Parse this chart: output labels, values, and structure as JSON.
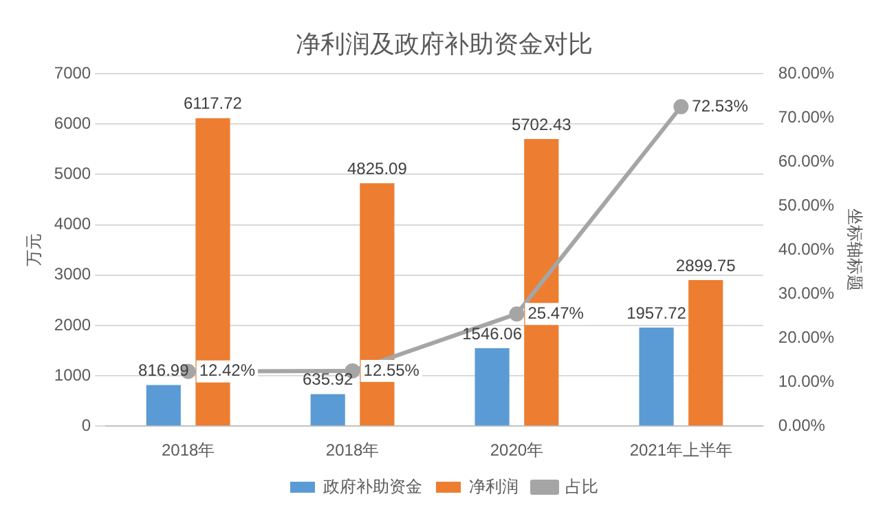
{
  "chart_data": {
    "type": "bar",
    "title": "净利润及政府补助资金对比",
    "categories": [
      "2018年",
      "2018年",
      "2020年",
      "2021年上半年"
    ],
    "series": [
      {
        "name": "政府补助资金",
        "color": "#5b9bd5",
        "values": [
          816.99,
          635.92,
          1546.06,
          1957.72
        ],
        "value_labels": [
          "816.99",
          "635.92",
          "1546.06",
          "1957.72"
        ]
      },
      {
        "name": "净利润",
        "color": "#ed7d31",
        "values": [
          6117.72,
          4825.09,
          5702.43,
          2899.75
        ],
        "value_labels": [
          "6117.72",
          "4825.09",
          "5702.43",
          "2899.75"
        ]
      },
      {
        "name": "占比",
        "type": "line",
        "axis": "y2",
        "color": "#a5a5a5",
        "marker": "circle",
        "values": [
          12.42,
          12.55,
          25.47,
          72.53
        ],
        "value_labels": [
          "12.42%",
          "12.55%",
          "25.47%",
          "72.53%"
        ]
      }
    ],
    "ylabel": "万元",
    "y2label": "坐标轴标题",
    "ylim": [
      0,
      7000
    ],
    "yticks": [
      0,
      1000,
      2000,
      3000,
      4000,
      5000,
      6000,
      7000
    ],
    "y2lim": [
      0,
      80
    ],
    "y2ticks": [
      {
        "value": 0,
        "label": "0.00%"
      },
      {
        "value": 10,
        "label": "10.00%"
      },
      {
        "value": 20,
        "label": "20.00%"
      },
      {
        "value": 30,
        "label": "30.00%"
      },
      {
        "value": 40,
        "label": "40.00%"
      },
      {
        "value": 50,
        "label": "50.00%"
      },
      {
        "value": 60,
        "label": "60.00%"
      },
      {
        "value": 70,
        "label": "70.00%"
      },
      {
        "value": 80,
        "label": "80.00%"
      }
    ],
    "grid": "y",
    "legend": "bottom"
  }
}
